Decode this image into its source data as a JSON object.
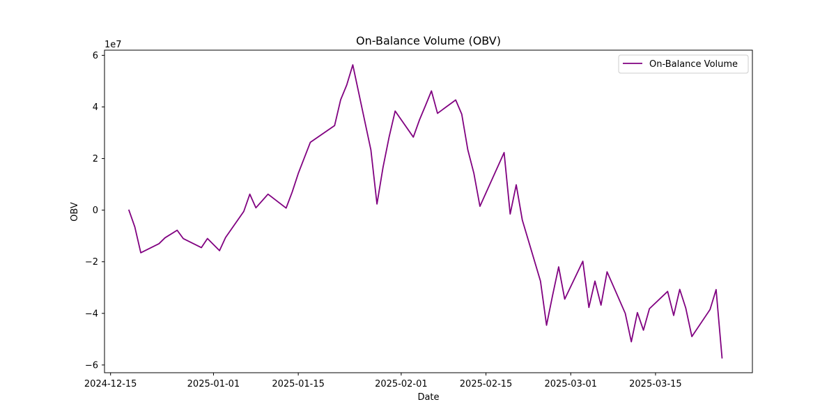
{
  "chart_data": {
    "type": "line",
    "title": "On-Balance Volume (OBV)",
    "xlabel": "Date",
    "ylabel": "OBV",
    "y_multiplier_label": "1e7",
    "y_scale": 10000000,
    "xlim": [
      "2024-12-14",
      "2025-03-31"
    ],
    "ylim": [
      -6.3,
      6.2
    ],
    "x_ticks": [
      "2024-12-15",
      "2025-01-01",
      "2025-01-15",
      "2025-02-01",
      "2025-02-15",
      "2025-03-01",
      "2025-03-15"
    ],
    "y_ticks": [
      -6,
      -4,
      -2,
      0,
      2,
      4,
      6
    ],
    "grid": false,
    "legend_position": "top-right",
    "series": [
      {
        "name": "On-Balance Volume",
        "color": "#800080",
        "x": [
          "2024-12-18",
          "2024-12-19",
          "2024-12-20",
          "2024-12-23",
          "2024-12-24",
          "2024-12-26",
          "2024-12-27",
          "2024-12-30",
          "2024-12-31",
          "2025-01-02",
          "2025-01-03",
          "2025-01-06",
          "2025-01-07",
          "2025-01-08",
          "2025-01-10",
          "2025-01-13",
          "2025-01-14",
          "2025-01-15",
          "2025-01-17",
          "2025-01-21",
          "2025-01-22",
          "2025-01-23",
          "2025-01-24",
          "2025-01-27",
          "2025-01-28",
          "2025-01-29",
          "2025-01-30",
          "2025-01-31",
          "2025-02-03",
          "2025-02-04",
          "2025-02-05",
          "2025-02-06",
          "2025-02-07",
          "2025-02-10",
          "2025-02-11",
          "2025-02-12",
          "2025-02-13",
          "2025-02-14",
          "2025-02-18",
          "2025-02-19",
          "2025-02-20",
          "2025-02-21",
          "2025-02-24",
          "2025-02-25",
          "2025-02-26",
          "2025-02-27",
          "2025-02-28",
          "2025-03-03",
          "2025-03-04",
          "2025-03-05",
          "2025-03-06",
          "2025-03-07",
          "2025-03-10",
          "2025-03-11",
          "2025-03-12",
          "2025-03-13",
          "2025-03-14",
          "2025-03-17",
          "2025-03-18",
          "2025-03-19",
          "2025-03-20",
          "2025-03-21",
          "2025-03-24",
          "2025-03-25",
          "2025-03-26"
        ],
        "values": [
          0.02,
          -0.65,
          -1.65,
          -1.3,
          -1.07,
          -0.78,
          -1.1,
          -1.45,
          -1.1,
          -1.57,
          -1.06,
          -0.05,
          0.62,
          0.09,
          0.62,
          0.08,
          0.7,
          1.42,
          2.63,
          3.28,
          4.28,
          4.85,
          5.63,
          2.33,
          0.24,
          1.66,
          2.83,
          3.84,
          2.83,
          3.49,
          4.05,
          4.62,
          3.75,
          4.27,
          3.72,
          2.34,
          1.43,
          0.15,
          2.23,
          -0.15,
          0.98,
          -0.38,
          -2.75,
          -4.46,
          -3.3,
          -2.2,
          -3.45,
          -1.98,
          -3.77,
          -2.75,
          -3.68,
          -2.39,
          -4.0,
          -5.1,
          -3.97,
          -4.65,
          -3.82,
          -3.15,
          -4.08,
          -3.07,
          -3.8,
          -4.9,
          -3.85,
          -3.08,
          -5.75
        ]
      }
    ]
  }
}
